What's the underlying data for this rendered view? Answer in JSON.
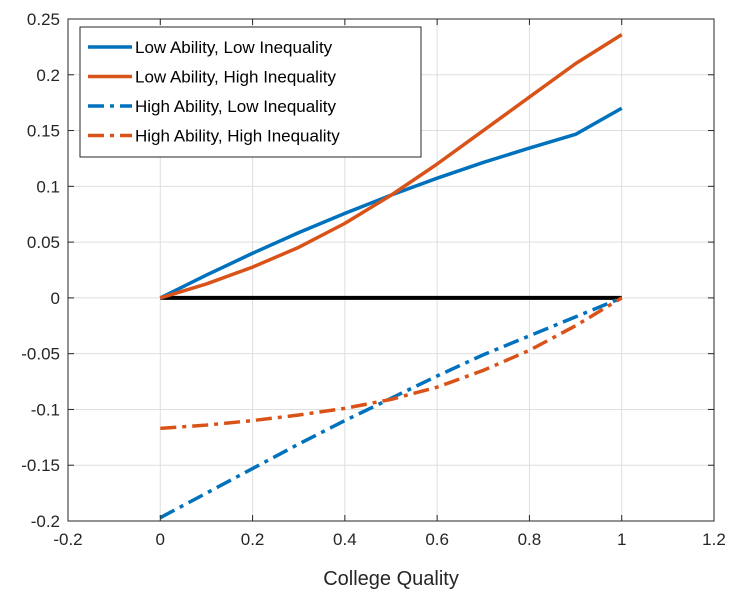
{
  "chart_data": {
    "type": "line",
    "title": "",
    "xlabel": "College Quality",
    "ylabel": "",
    "xlim": [
      -0.2,
      1.2
    ],
    "ylim": [
      -0.2,
      0.25
    ],
    "xticks": [
      -0.2,
      0,
      0.2,
      0.4,
      0.6,
      0.8,
      1,
      1.2
    ],
    "yticks": [
      -0.2,
      -0.15,
      -0.1,
      -0.05,
      0,
      0.05,
      0.1,
      0.15,
      0.2,
      0.25
    ],
    "xtick_labels": [
      "-0.2",
      "0",
      "0.2",
      "0.4",
      "0.6",
      "0.8",
      "1",
      "1.2"
    ],
    "ytick_labels": [
      "-0.2",
      "-0.15",
      "-0.1",
      "-0.05",
      "0",
      "0.05",
      "0.1",
      "0.15",
      "0.2",
      "0.25"
    ],
    "grid": true,
    "legend_position": "top-left",
    "series": [
      {
        "name": "Low Ability, Low Inequality",
        "color": "#0072BD",
        "style": "solid",
        "x": [
          0,
          0.1,
          0.2,
          0.3,
          0.4,
          0.5,
          0.6,
          0.7,
          0.8,
          0.9,
          1.0
        ],
        "y": [
          0,
          0.0205,
          0.04,
          0.0585,
          0.0758,
          0.0921,
          0.1073,
          0.1214,
          0.1343,
          0.1466,
          0.17
        ]
      },
      {
        "name": "Low Ability, High Inequality",
        "color": "#D95319",
        "style": "solid",
        "x": [
          0,
          0.1,
          0.2,
          0.3,
          0.4,
          0.5,
          0.6,
          0.7,
          0.8,
          0.9,
          1.0
        ],
        "y": [
          0,
          0.0125,
          0.0276,
          0.0453,
          0.0668,
          0.092,
          0.12,
          0.15,
          0.18,
          0.21,
          0.236
        ]
      },
      {
        "name": "High Ability, Low Inequality",
        "color": "#0072BD",
        "style": "dashdot",
        "x": [
          0,
          0.1,
          0.2,
          0.3,
          0.4,
          0.5,
          0.6,
          0.7,
          0.8,
          0.9,
          1.0
        ],
        "y": [
          -0.197,
          -0.175,
          -0.153,
          -0.131,
          -0.11,
          -0.09,
          -0.07,
          -0.051,
          -0.034,
          -0.017,
          0
        ]
      },
      {
        "name": "High Ability, High Inequality",
        "color": "#D95319",
        "style": "dashdot",
        "x": [
          0,
          0.1,
          0.2,
          0.3,
          0.4,
          0.5,
          0.6,
          0.7,
          0.8,
          0.9,
          1.0
        ],
        "y": [
          -0.117,
          -0.114,
          -0.11,
          -0.105,
          -0.099,
          -0.091,
          -0.08,
          -0.065,
          -0.047,
          -0.025,
          0
        ]
      },
      {
        "name": "",
        "color": "#000000",
        "style": "solid",
        "x": [
          0,
          1
        ],
        "y": [
          0,
          0
        ]
      }
    ]
  }
}
